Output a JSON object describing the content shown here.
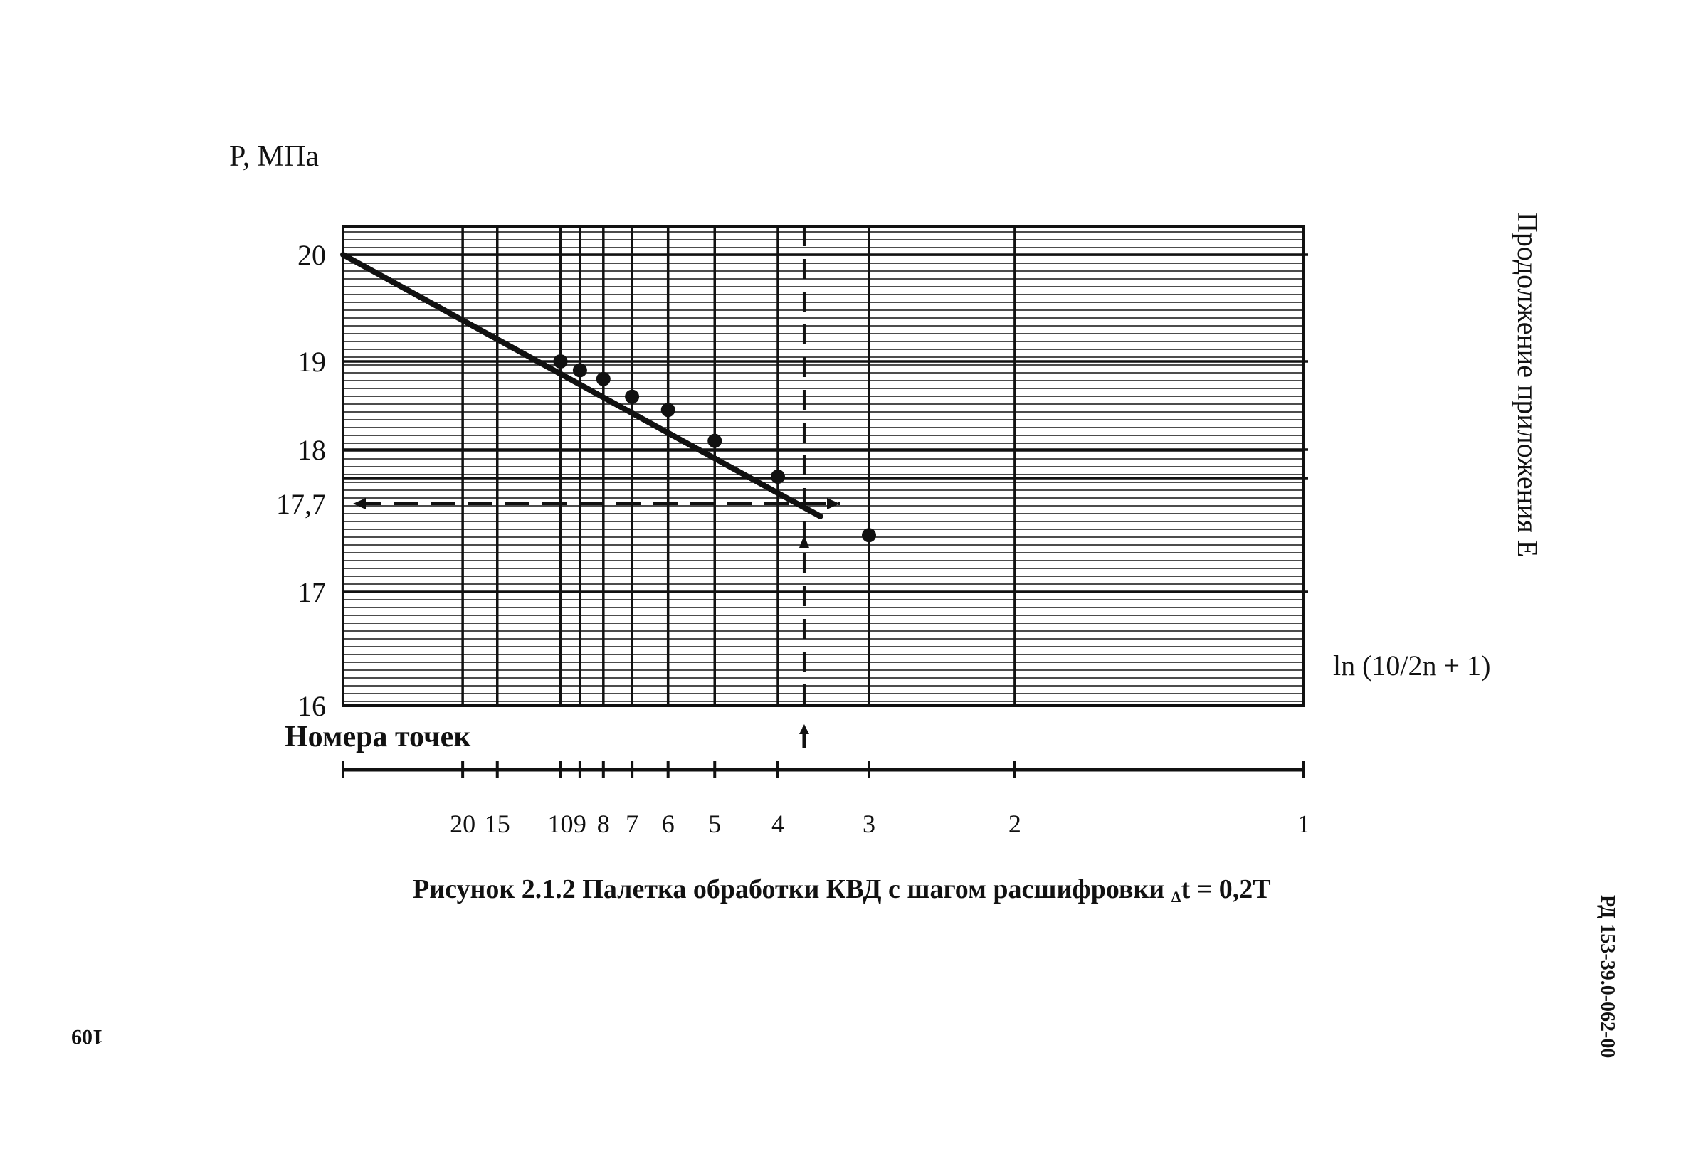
{
  "chart_data": {
    "type": "line",
    "title": "",
    "ylabel": "P, МПа",
    "xlabel": "ln (10/2n + 1)",
    "secondary_xlabel": "Номера точек",
    "ylim": [
      16,
      20
    ],
    "y_ticks": [
      "20",
      "19",
      "18",
      "17,7",
      "17"
    ],
    "y_bottom_tick": "16",
    "x_tick_labels": [
      "20",
      "15",
      "10",
      "9",
      "8",
      "7",
      "6",
      "5",
      "4",
      "3",
      "2",
      "1"
    ],
    "x_tick_points": [
      20,
      15,
      10,
      9,
      8,
      7,
      6,
      5,
      4,
      3,
      2,
      1
    ],
    "grid": true,
    "series": [
      {
        "type": "scatter",
        "points": [
          {
            "point": 10,
            "y": 19.0
          },
          {
            "point": 9,
            "y": 18.9
          },
          {
            "point": 8,
            "y": 18.8
          },
          {
            "point": 7,
            "y": 18.6
          },
          {
            "point": 6,
            "y": 18.45
          },
          {
            "point": 5,
            "y": 18.1
          },
          {
            "point": 4,
            "y": 17.85
          },
          {
            "point": 3,
            "y": 17.45
          }
        ]
      },
      {
        "type": "line",
        "line": [
          {
            "x": 0.0,
            "y": 20.0
          },
          {
            "x": 0.89,
            "y": 17.6
          }
        ]
      }
    ],
    "annotations": [
      {
        "type": "horizontal-dashed",
        "y": 17.7
      },
      {
        "type": "vertical-dashed",
        "x": 0.86
      }
    ]
  },
  "caption": {
    "prefix": "Рисунок 2.1.2 Палетка обработки КВД с шагом расшифровки ",
    "sub": "Δ",
    "suffix": "t = 0,2Т"
  },
  "side_text": "Продолжение приложения Е",
  "doc_code": "РД 153-39.0-062-00",
  "page_number": "109",
  "colors": {
    "ink": "#111111",
    "paper": "#ffffff"
  }
}
